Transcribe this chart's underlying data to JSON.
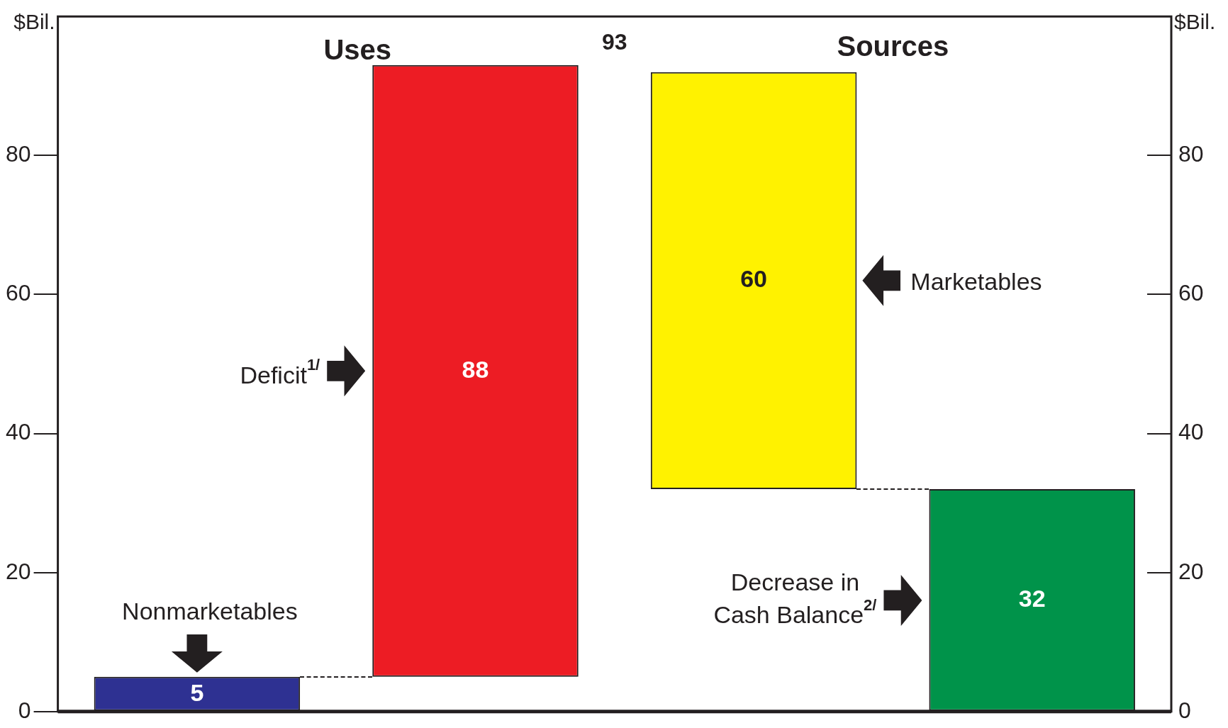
{
  "chart_data": {
    "type": "bar",
    "ylabel": "$Bil.",
    "y2label": "$Bil.",
    "categories": [
      null,
      null,
      null,
      null
    ],
    "values": [
      5,
      88,
      60,
      32
    ],
    "base": [
      0,
      5,
      32,
      0
    ],
    "colors": [
      "#2e3192",
      "#ed1c24",
      "#fff200",
      "#00934a"
    ],
    "data_labels": true,
    "ylim": [
      0,
      100
    ],
    "yticks": [
      0,
      20,
      40,
      60,
      80
    ],
    "y2lim": [
      0,
      100
    ],
    "y2ticks": [
      0,
      20,
      40,
      60,
      80
    ],
    "annotations": [
      "Uses",
      "Sources",
      "93",
      "Nonmarketables",
      "Deficit$^{1/}$",
      "Marketables",
      "Decrease in\nCash Balance$^{2/}$"
    ],
    "grid": false,
    "legend": false
  }
}
